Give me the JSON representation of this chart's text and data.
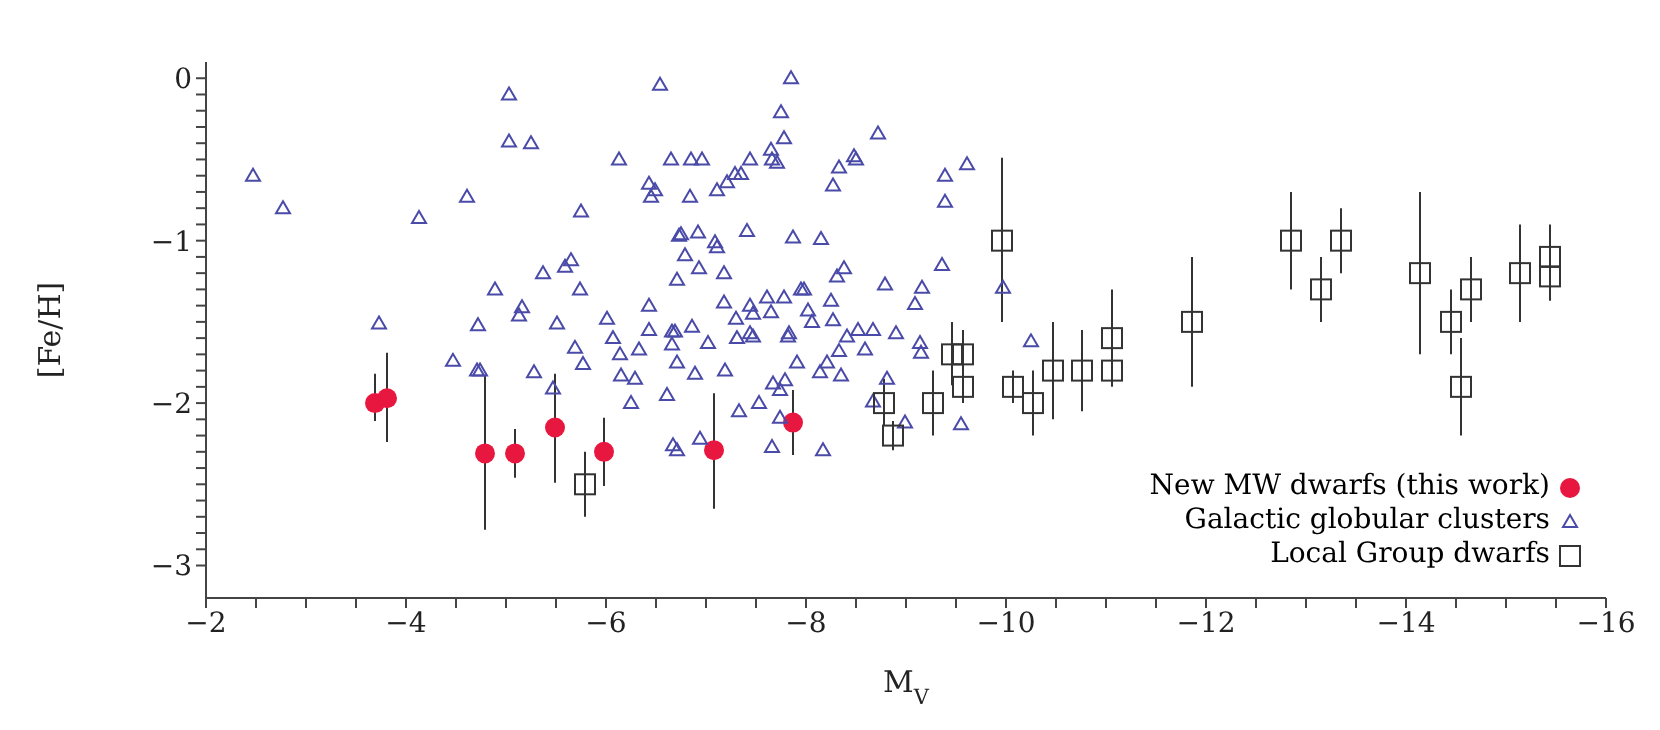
{
  "chart_data": {
    "type": "scatter",
    "xlabel": "M$_{V}$",
    "ylabel": "[Fe/H]",
    "xlim": [
      -2,
      -16
    ],
    "ylim": [
      -3.2,
      0.1
    ],
    "xticks": [
      -2,
      {
        "value": -2.5,
        "label": null
      },
      {
        "value": -3,
        "label": null
      },
      {
        "value": -3.5,
        "label": null
      },
      -4,
      {
        "value": -4.5,
        "label": null
      },
      {
        "value": -5,
        "label": null
      },
      {
        "value": -5.5,
        "label": null
      },
      -6,
      {
        "value": -6.5,
        "label": null
      },
      {
        "value": -7,
        "label": null
      },
      {
        "value": -7.5,
        "label": null
      },
      -8,
      {
        "value": -8.5,
        "label": null
      },
      {
        "value": -9,
        "label": null
      },
      {
        "value": -9.5,
        "label": null
      },
      -10,
      {
        "value": -10.5,
        "label": null
      },
      {
        "value": -11,
        "label": null
      },
      {
        "value": -11.5,
        "label": null
      },
      -12,
      {
        "value": -12.5,
        "label": null
      },
      {
        "value": -13,
        "label": null
      },
      {
        "value": -13.5,
        "label": null
      },
      -14,
      {
        "value": -14.5,
        "label": null
      },
      {
        "value": -15,
        "label": null
      },
      {
        "value": -15.5,
        "label": null
      },
      -16
    ],
    "yticks": [
      -3,
      {
        "value": -2.9,
        "label": null
      },
      {
        "value": -2.8,
        "label": null
      },
      {
        "value": -2.7,
        "label": null
      },
      {
        "value": -2.6,
        "label": null
      },
      {
        "value": -2.5,
        "label": null
      },
      {
        "value": -2.4,
        "label": null
      },
      {
        "value": -2.3,
        "label": null
      },
      {
        "value": -2.2,
        "label": null
      },
      {
        "value": -2.1,
        "label": null
      },
      -2,
      {
        "value": -1.9,
        "label": null
      },
      {
        "value": -1.8,
        "label": null
      },
      {
        "value": -1.7,
        "label": null
      },
      {
        "value": -1.6,
        "label": null
      },
      {
        "value": -1.5,
        "label": null
      },
      {
        "value": -1.4,
        "label": null
      },
      {
        "value": -1.3,
        "label": null
      },
      {
        "value": -1.2,
        "label": null
      },
      {
        "value": -1.1,
        "label": null
      },
      -1,
      {
        "value": -0.9,
        "label": null
      },
      {
        "value": -0.8,
        "label": null
      },
      {
        "value": -0.7,
        "label": null
      },
      {
        "value": -0.6,
        "label": null
      },
      {
        "value": -0.5,
        "label": null
      },
      {
        "value": -0.4,
        "label": null
      },
      {
        "value": -0.3,
        "label": null
      },
      {
        "value": -0.2,
        "label": null
      },
      {
        "value": -0.1,
        "label": null
      },
      0
    ],
    "grid": false,
    "legend": "bottom right",
    "series": [
      {
        "name": "New MW dwarfs (this work)",
        "color": "#e8173f",
        "marker": "circle",
        "x": [
          -3.69,
          -3.81,
          -4.79,
          -5.09,
          -5.49,
          -5.98,
          -7.08,
          -7.87
        ],
        "values": [
          -2.0,
          -1.97,
          -2.31,
          -2.31,
          -2.15,
          -2.3,
          -2.29,
          -2.12
        ],
        "errors": [
          [
            -2.11,
            -1.82
          ],
          [
            -2.24,
            -1.69
          ],
          [
            -2.78,
            -1.83
          ],
          [
            -2.46,
            -2.16
          ],
          [
            -2.49,
            -1.82
          ],
          [
            -2.51,
            -2.09
          ],
          [
            -2.65,
            -1.94
          ],
          [
            -2.32,
            -1.92
          ]
        ]
      },
      {
        "name": "Galactic globular clusters",
        "color": "#4a4aa8",
        "marker": "triangle",
        "x": [
          -2.47,
          -2.77,
          -3.73,
          -4.13,
          -4.47,
          -4.61,
          -4.72,
          -4.71,
          -4.74,
          -4.89,
          -5.03,
          -5.03,
          -5.13,
          -5.16,
          -5.25,
          -5.28,
          -5.37,
          -5.47,
          -5.51,
          -5.59,
          -5.65,
          -5.69,
          -5.74,
          -5.75,
          -5.77,
          -6.01,
          -6.07,
          -6.13,
          -6.14,
          -6.15,
          -6.25,
          -6.29,
          -6.33,
          -6.43,
          -6.45,
          -6.49,
          -6.43,
          -6.43,
          -6.54,
          -6.61,
          -6.65,
          -6.66,
          -6.69,
          -6.66,
          -6.67,
          -6.71,
          -6.71,
          -6.71,
          -6.73,
          -6.85,
          -6.96,
          -6.84,
          -6.75,
          -6.92,
          -6.79,
          -6.93,
          -7.18,
          -6.86,
          -7.02,
          -6.89,
          -7.19,
          -6.94,
          -7.18,
          -7.11,
          -7.21,
          -7.29,
          -7.35,
          -7.09,
          -7.11,
          -7.41,
          -7.44,
          -7.3,
          -7.44,
          -7.47,
          -7.44,
          -7.47,
          -7.31,
          -7.61,
          -7.65,
          -7.78,
          -7.82,
          -7.83,
          -7.33,
          -7.53,
          -7.67,
          -7.79,
          -7.74,
          -7.74,
          -7.66,
          -7.85,
          -7.75,
          -7.78,
          -7.65,
          -7.66,
          -7.71,
          -7.87,
          -7.91,
          -7.95,
          -7.98,
          -8.02,
          -8.06,
          -8.15,
          -8.17,
          -8.21,
          -8.14,
          -8.25,
          -8.27,
          -8.27,
          -8.33,
          -8.33,
          -8.35,
          -8.31,
          -8.38,
          -8.41,
          -8.48,
          -8.5,
          -8.52,
          -8.59,
          -8.67,
          -8.72,
          -8.67,
          -8.79,
          -8.81,
          -8.9,
          -8.99,
          -9.09,
          -9.16,
          -9.14,
          -9.15,
          -9.36,
          -9.39,
          -9.39,
          -9.55,
          -9.61,
          -9.97,
          -10.25
        ],
        "values": [
          -0.6,
          -0.8,
          -1.51,
          -0.86,
          -1.74,
          -0.73,
          -1.52,
          -1.8,
          -1.8,
          -1.3,
          -0.1,
          -0.39,
          -1.46,
          -1.41,
          -0.4,
          -1.81,
          -1.2,
          -1.91,
          -1.51,
          -1.16,
          -1.12,
          -1.66,
          -1.3,
          -0.82,
          -1.76,
          -1.48,
          -1.6,
          -0.5,
          -1.7,
          -1.83,
          -2.0,
          -1.85,
          -1.67,
          -0.65,
          -0.73,
          -0.69,
          -1.4,
          -1.55,
          -0.04,
          -1.95,
          -0.5,
          -1.56,
          -1.56,
          -1.64,
          -2.26,
          -2.29,
          -1.24,
          -1.75,
          -0.97,
          -0.5,
          -0.5,
          -0.73,
          -0.96,
          -0.95,
          -1.09,
          -1.17,
          -1.2,
          -1.53,
          -1.63,
          -1.82,
          -1.8,
          -2.22,
          -1.38,
          -0.69,
          -0.64,
          -0.59,
          -0.59,
          -1.01,
          -1.04,
          -0.94,
          -0.5,
          -1.48,
          -1.4,
          -1.45,
          -1.57,
          -1.59,
          -1.6,
          -1.35,
          -1.44,
          -1.35,
          -1.59,
          -1.57,
          -2.05,
          -2.0,
          -1.88,
          -1.86,
          -1.92,
          -2.09,
          -2.27,
          0.0,
          -0.21,
          -0.37,
          -0.44,
          -0.5,
          -0.52,
          -0.98,
          -1.75,
          -1.3,
          -1.3,
          -1.43,
          -1.5,
          -0.99,
          -2.29,
          -1.75,
          -1.81,
          -1.37,
          -1.49,
          -0.66,
          -0.55,
          -1.68,
          -1.83,
          -1.22,
          -1.17,
          -1.59,
          -0.48,
          -0.5,
          -1.55,
          -1.67,
          -1.55,
          -0.34,
          -1.99,
          -1.27,
          -1.85,
          -1.57,
          -2.12,
          -1.39,
          -1.29,
          -1.63,
          -1.69,
          -1.15,
          -0.6,
          -0.76,
          -2.13,
          -0.53,
          -1.29,
          -1.62
        ]
      },
      {
        "name": "Local Group dwarfs",
        "color": "#333333",
        "marker": "square",
        "x": [
          -5.79,
          -9.96,
          -8.78,
          -8.87,
          -9.27,
          -9.46,
          -9.57,
          -9.57,
          -10.07,
          -10.27,
          -10.47,
          -10.76,
          -11.06,
          -11.06,
          -11.86,
          -12.85,
          -13.15,
          -13.35,
          -14.14,
          -14.45,
          -14.55,
          -14.65,
          -15.14,
          -15.44,
          -15.44
        ],
        "values": [
          -2.5,
          -1.0,
          -2.0,
          -2.2,
          -2.0,
          -1.7,
          -1.7,
          -1.9,
          -1.9,
          -2.0,
          -1.8,
          -1.8,
          -1.6,
          -1.8,
          -1.5,
          -1.0,
          -1.3,
          -1.0,
          -1.2,
          -1.5,
          -1.9,
          -1.3,
          -1.2,
          -1.1,
          -1.22
        ],
        "errors": [
          [
            -2.7,
            -2.3
          ],
          [
            -1.5,
            -0.49
          ],
          [
            -2.14,
            -1.85
          ],
          [
            -2.29,
            -2.11
          ],
          [
            -2.2,
            -1.8
          ],
          [
            -1.89,
            -1.5
          ],
          [
            -2.0,
            -1.55
          ],
          [
            -2.0,
            -1.8
          ],
          [
            -2.0,
            -1.8
          ],
          [
            -2.2,
            -1.8
          ],
          [
            -2.1,
            -1.5
          ],
          [
            -2.05,
            -1.55
          ],
          [
            -1.8,
            -1.3
          ],
          [
            -1.9,
            -1.6
          ],
          [
            -1.9,
            -1.1
          ],
          [
            -1.3,
            -0.7
          ],
          [
            -1.5,
            -1.1
          ],
          [
            -1.2,
            -0.8
          ],
          [
            -1.7,
            -0.7
          ],
          [
            -1.7,
            -1.3
          ],
          [
            -2.2,
            -1.6
          ],
          [
            -1.5,
            -1.1
          ],
          [
            -1.5,
            -0.9
          ],
          [
            -1.3,
            -0.9
          ],
          [
            -1.37,
            -1.1
          ]
        ]
      }
    ]
  }
}
